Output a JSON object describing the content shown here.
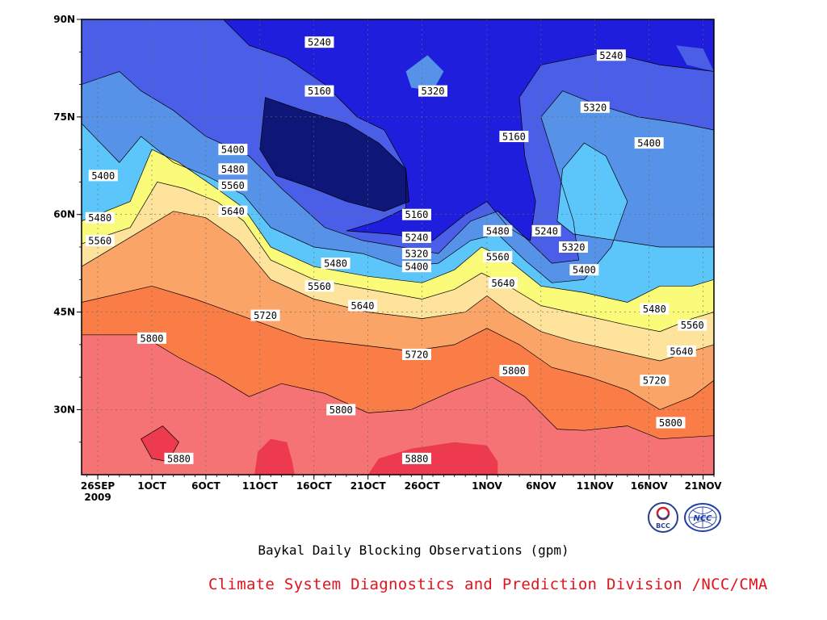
{
  "title": "Baykal Daily Blocking Observations (gpm)",
  "credit": "Climate System Diagnostics and Prediction Division /NCC/CMA",
  "logos": [
    {
      "name": "bcc-logo",
      "text": "BCC"
    },
    {
      "name": "ncc-logo",
      "text": "NCC"
    }
  ],
  "chart_data": {
    "type": "contour",
    "xlabel": "",
    "ylabel": "",
    "x_ticks": [
      {
        "line1": "26SEP",
        "line2": "2009",
        "day": 0
      },
      {
        "line1": "1OCT",
        "line2": "",
        "day": 5
      },
      {
        "line1": "6OCT",
        "line2": "",
        "day": 10
      },
      {
        "line1": "11OCT",
        "line2": "",
        "day": 15
      },
      {
        "line1": "16OCT",
        "line2": "",
        "day": 20
      },
      {
        "line1": "21OCT",
        "line2": "",
        "day": 25
      },
      {
        "line1": "26OCT",
        "line2": "",
        "day": 30
      },
      {
        "line1": "1NOV",
        "line2": "",
        "day": 36
      },
      {
        "line1": "6NOV",
        "line2": "",
        "day": 41
      },
      {
        "line1": "11NOV",
        "line2": "",
        "day": 46
      },
      {
        "line1": "16NOV",
        "line2": "",
        "day": 51
      },
      {
        "line1": "21NOV",
        "line2": "",
        "day": 56
      }
    ],
    "y_ticks": [
      {
        "label": "90N",
        "lat": 90
      },
      {
        "label": "75N",
        "lat": 75
      },
      {
        "label": "60N",
        "lat": 60
      },
      {
        "label": "45N",
        "lat": 45
      },
      {
        "label": "30N",
        "lat": 30
      }
    ],
    "xlim_days": [
      -1.5,
      57
    ],
    "ylim_lat": [
      20,
      90
    ],
    "grid": true,
    "levels": [
      5160,
      5240,
      5320,
      5400,
      5480,
      5560,
      5640,
      5720,
      5800,
      5880
    ],
    "fill_colors": {
      "5880": "#ee3a4e",
      "5800": "#f57375",
      "5720": "#fa7d47",
      "5640": "#fba467",
      "5560": "#fde39c",
      "5480": "#fbfb7a",
      "5400": "#5cc6fb",
      "5320": "#5692e8",
      "5240": "#4a5ee8",
      "5160": "#1e1edc",
      "below": "#0e1678"
    },
    "contours": [
      {
        "level": 5800,
        "points": [
          [
            -1.5,
            41.5
          ],
          [
            4,
            41.5
          ],
          [
            7.5,
            38
          ],
          [
            11,
            35
          ],
          [
            14,
            32
          ],
          [
            17,
            34
          ],
          [
            21,
            32.5
          ],
          [
            25,
            29.5
          ],
          [
            29,
            30
          ],
          [
            33,
            33
          ],
          [
            36.5,
            35
          ],
          [
            39.5,
            32
          ],
          [
            42.5,
            27
          ],
          [
            45,
            26.8
          ],
          [
            49,
            27.5
          ],
          [
            52,
            25.5
          ],
          [
            57,
            26
          ]
        ]
      },
      {
        "level": 5720,
        "points": [
          [
            -1.5,
            46.5
          ],
          [
            5,
            49
          ],
          [
            9,
            47
          ],
          [
            14,
            44
          ],
          [
            19,
            41
          ],
          [
            24,
            40
          ],
          [
            29,
            39
          ],
          [
            33,
            40
          ],
          [
            36,
            42.5
          ],
          [
            39,
            40
          ],
          [
            42,
            36.5
          ],
          [
            45.5,
            35
          ],
          [
            49,
            33
          ],
          [
            52,
            30
          ],
          [
            55,
            32
          ],
          [
            57,
            34.5
          ]
        ]
      },
      {
        "level": 5640,
        "points": [
          [
            -1.5,
            52
          ],
          [
            4,
            57.5
          ],
          [
            7,
            60.5
          ],
          [
            10,
            59.5
          ],
          [
            13,
            56
          ],
          [
            16,
            50
          ],
          [
            20,
            47
          ],
          [
            25,
            45
          ],
          [
            30,
            44
          ],
          [
            34,
            45
          ],
          [
            36,
            47.5
          ],
          [
            38,
            45
          ],
          [
            41,
            42
          ],
          [
            44,
            40.5
          ],
          [
            48,
            39
          ],
          [
            52,
            37.5
          ],
          [
            55,
            39
          ],
          [
            57,
            40
          ]
        ]
      },
      {
        "level": 5560,
        "points": [
          [
            -1.5,
            55.5
          ],
          [
            3,
            58
          ],
          [
            5.5,
            65
          ],
          [
            8,
            64
          ],
          [
            11,
            62
          ],
          [
            13.5,
            59
          ],
          [
            16,
            53
          ],
          [
            20,
            50
          ],
          [
            25,
            48.5
          ],
          [
            30,
            47
          ],
          [
            33,
            48.5
          ],
          [
            35.5,
            51
          ],
          [
            38,
            49
          ],
          [
            41,
            46
          ],
          [
            45,
            44.5
          ],
          [
            49,
            43
          ],
          [
            52,
            42
          ],
          [
            55,
            44
          ],
          [
            57,
            45
          ]
        ]
      },
      {
        "level": 5480,
        "points": [
          [
            -1.5,
            59
          ],
          [
            3,
            62
          ],
          [
            5,
            70
          ],
          [
            7.5,
            68
          ],
          [
            11,
            64
          ],
          [
            13.5,
            61
          ],
          [
            16,
            55
          ],
          [
            20,
            52
          ],
          [
            25,
            50.5
          ],
          [
            30,
            49.5
          ],
          [
            33,
            51.5
          ],
          [
            35.5,
            55
          ],
          [
            38,
            53
          ],
          [
            41,
            49
          ],
          [
            45,
            48
          ],
          [
            49,
            46.5
          ],
          [
            52,
            49
          ],
          [
            55,
            49
          ],
          [
            57,
            50
          ]
        ]
      },
      {
        "level": 5400,
        "points": [
          [
            -1.5,
            74
          ],
          [
            2,
            68
          ],
          [
            4,
            72
          ],
          [
            7,
            68
          ],
          [
            10,
            66
          ],
          [
            13.5,
            63
          ],
          [
            16,
            58
          ],
          [
            20,
            55
          ],
          [
            24.5,
            54
          ],
          [
            28,
            52
          ],
          [
            31.5,
            52.5
          ],
          [
            34.5,
            56
          ],
          [
            37,
            57
          ],
          [
            39.5,
            53
          ],
          [
            42,
            49.5
          ],
          [
            45,
            50
          ],
          [
            47.5,
            55
          ],
          [
            49,
            62
          ],
          [
            47,
            69
          ],
          [
            45,
            71
          ],
          [
            43,
            67
          ],
          [
            42.5,
            59
          ],
          [
            44,
            57
          ],
          [
            48,
            56
          ],
          [
            52,
            55
          ],
          [
            57,
            55
          ]
        ]
      },
      {
        "level": 5320,
        "points": [
          [
            -1.5,
            80
          ],
          [
            2,
            82
          ],
          [
            4,
            79
          ],
          [
            7,
            76
          ],
          [
            10,
            72
          ],
          [
            14,
            69
          ],
          [
            17,
            64
          ],
          [
            21,
            58
          ],
          [
            24.5,
            56
          ],
          [
            28,
            55
          ],
          [
            31.5,
            54
          ],
          [
            34.5,
            59
          ],
          [
            37,
            60.5
          ],
          [
            39.5,
            56.5
          ],
          [
            42,
            52.5
          ],
          [
            44.5,
            53
          ],
          [
            44,
            59
          ],
          [
            42.5,
            67
          ],
          [
            41,
            75
          ],
          [
            43,
            79
          ],
          [
            46,
            77
          ],
          [
            50,
            75
          ],
          [
            54,
            74
          ],
          [
            57,
            73
          ]
        ]
      },
      {
        "level": 5240,
        "points": [
          [
            11,
            91
          ],
          [
            14,
            86
          ],
          [
            17.5,
            84
          ],
          [
            21,
            80
          ],
          [
            24,
            75
          ],
          [
            26.5,
            73
          ],
          [
            28.5,
            67
          ],
          [
            28.5,
            61
          ],
          [
            26,
            59
          ],
          [
            23,
            57.5
          ],
          [
            27,
            57
          ],
          [
            31,
            56
          ],
          [
            34,
            60
          ],
          [
            36,
            62
          ],
          [
            38,
            58
          ],
          [
            40,
            56
          ],
          [
            40.5,
            62
          ],
          [
            39.5,
            69
          ],
          [
            39,
            78
          ],
          [
            41,
            83
          ],
          [
            44,
            84
          ],
          [
            47,
            85
          ],
          [
            52,
            83
          ],
          [
            57,
            82
          ]
        ]
      },
      {
        "level": 5160,
        "points": [
          [
            15.5,
            78
          ],
          [
            19,
            76
          ],
          [
            23,
            74
          ],
          [
            26,
            71
          ],
          [
            28.5,
            67
          ],
          [
            28.8,
            62
          ],
          [
            26.5,
            60.5
          ],
          [
            23,
            62
          ],
          [
            20,
            64
          ],
          [
            16.5,
            66
          ],
          [
            15,
            70
          ],
          [
            15.5,
            78
          ]
        ]
      },
      {
        "level": 5880,
        "points": [
          [
            4,
            25.5
          ],
          [
            6,
            27.5
          ],
          [
            7.5,
            25
          ],
          [
            6.5,
            22
          ],
          [
            5,
            22.5
          ],
          [
            4,
            25.5
          ]
        ]
      }
    ],
    "contour_labels": [
      {
        "value": "5400",
        "day": 0.5,
        "lat": 66
      },
      {
        "value": "5480",
        "day": 0.2,
        "lat": 59.5
      },
      {
        "value": "5560",
        "day": 0.2,
        "lat": 56
      },
      {
        "value": "5400",
        "day": 12.5,
        "lat": 70
      },
      {
        "value": "5480",
        "day": 12.5,
        "lat": 67
      },
      {
        "value": "5560",
        "day": 12.5,
        "lat": 64.5
      },
      {
        "value": "5640",
        "day": 12.5,
        "lat": 60.5
      },
      {
        "value": "5240",
        "day": 20.5,
        "lat": 86.5
      },
      {
        "value": "5160",
        "day": 20.5,
        "lat": 79
      },
      {
        "value": "5320",
        "day": 31,
        "lat": 79
      },
      {
        "value": "5160",
        "day": 29.5,
        "lat": 60
      },
      {
        "value": "5240",
        "day": 29.5,
        "lat": 56.5
      },
      {
        "value": "5320",
        "day": 29.5,
        "lat": 54
      },
      {
        "value": "5400",
        "day": 29.5,
        "lat": 52
      },
      {
        "value": "5480",
        "day": 22,
        "lat": 52.5
      },
      {
        "value": "5560",
        "day": 20.5,
        "lat": 49
      },
      {
        "value": "5640",
        "day": 24.5,
        "lat": 46
      },
      {
        "value": "5720",
        "day": 15.5,
        "lat": 44.5
      },
      {
        "value": "5800",
        "day": 5,
        "lat": 41
      },
      {
        "value": "5720",
        "day": 29.5,
        "lat": 38.5
      },
      {
        "value": "5800",
        "day": 22.5,
        "lat": 30
      },
      {
        "value": "5880",
        "day": 7.5,
        "lat": 22.5
      },
      {
        "value": "5880",
        "day": 29.5,
        "lat": 22.5
      },
      {
        "value": "5480",
        "day": 37,
        "lat": 57.5
      },
      {
        "value": "5560",
        "day": 37,
        "lat": 53.5
      },
      {
        "value": "5640",
        "day": 37.5,
        "lat": 49.5
      },
      {
        "value": "5800",
        "day": 38.5,
        "lat": 36
      },
      {
        "value": "5160",
        "day": 38.5,
        "lat": 72
      },
      {
        "value": "5240",
        "day": 41.5,
        "lat": 57.5
      },
      {
        "value": "5320",
        "day": 44,
        "lat": 55
      },
      {
        "value": "5400",
        "day": 45,
        "lat": 51.5
      },
      {
        "value": "5240",
        "day": 47.5,
        "lat": 84.5
      },
      {
        "value": "5320",
        "day": 46,
        "lat": 76.5
      },
      {
        "value": "5400",
        "day": 51,
        "lat": 71
      },
      {
        "value": "5480",
        "day": 51.5,
        "lat": 45.5
      },
      {
        "value": "5560",
        "day": 55,
        "lat": 43
      },
      {
        "value": "5640",
        "day": 54,
        "lat": 39
      },
      {
        "value": "5720",
        "day": 51.5,
        "lat": 34.5
      },
      {
        "value": "5800",
        "day": 53,
        "lat": 28
      }
    ]
  }
}
